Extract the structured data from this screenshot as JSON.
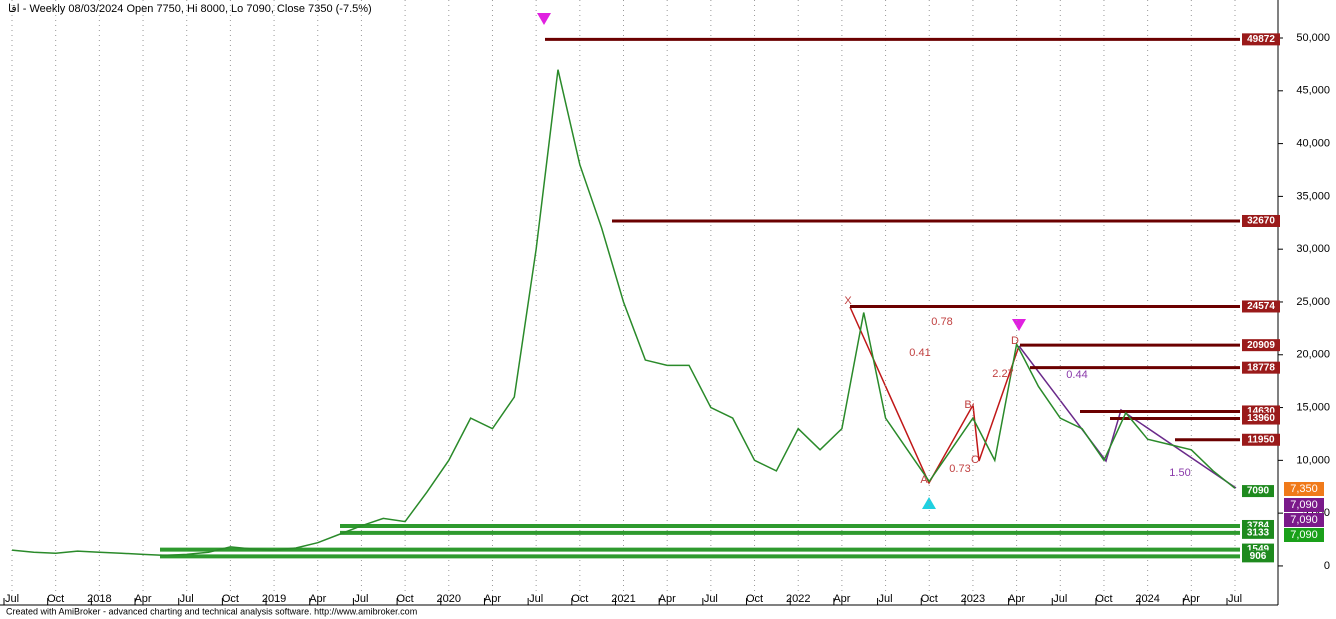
{
  "chart_data": {
    "type": "line",
    "title": "اقا - Weekly 08/03/2024 Open 7750, Hi 8000, Lo 7090, Close 7350 (-7.5%)",
    "footer": "Created with AmiBroker - advanced charting and technical analysis software. http://www.amibroker.com",
    "categories": [
      "Jul",
      null,
      "Oct",
      null,
      "2018",
      null,
      "Apr",
      null,
      "Jul",
      null,
      "Oct",
      null,
      "2019",
      null,
      "Apr",
      null,
      "Jul",
      null,
      "Oct",
      null,
      "2020",
      null,
      "Apr",
      null,
      "Jul",
      null,
      "Oct",
      null,
      "2021",
      null,
      "Apr",
      null,
      "Jul",
      null,
      "Oct",
      null,
      "2022",
      null,
      "Apr",
      null,
      "Jul",
      null,
      "Oct",
      null,
      "2023",
      null,
      "Apr",
      null,
      "Jul",
      null,
      "Oct",
      null,
      "2024",
      null,
      "Apr",
      null,
      "Jul"
    ],
    "series": [
      {
        "name": "Close",
        "color": "#2a8a2a",
        "values": [
          1500,
          1300,
          1200,
          1400,
          1300,
          1200,
          1100,
          1000,
          1100,
          1300,
          1800,
          1600,
          1500,
          1700,
          2200,
          3000,
          3800,
          4500,
          4200,
          7000,
          10000,
          14000,
          13000,
          16000,
          30000,
          47000,
          38000,
          32000,
          25000,
          19500,
          19000,
          19000,
          15000,
          14000,
          10000,
          9000,
          13000,
          11000,
          13000,
          24000,
          14000,
          11000,
          8000,
          11000,
          14000,
          10000,
          21000,
          17000,
          14000,
          13000,
          10000,
          14500,
          12000,
          11500,
          11000,
          9000,
          7350
        ]
      }
    ],
    "ylim": [
      -3700,
      53600
    ],
    "yticks": [
      0,
      {
        "value": 5000,
        "label": "5,000"
      },
      {
        "value": 10000,
        "label": "10,000"
      },
      {
        "value": 15000,
        "label": "15,000"
      },
      {
        "value": 20000,
        "label": "20,000"
      },
      {
        "value": 25000,
        "label": "25,000"
      },
      {
        "value": 30000,
        "label": "30,000"
      },
      {
        "value": 35000,
        "label": "35,000"
      },
      {
        "value": 40000,
        "label": "40,000"
      },
      {
        "value": 45000,
        "label": "45,000"
      },
      {
        "value": 50000,
        "label": "50,000"
      }
    ],
    "grid": true,
    "resistance": {
      "color": "#6b0000",
      "values": [
        49872,
        32670,
        24574,
        20909,
        18778,
        14630,
        13960,
        11950
      ]
    },
    "support": {
      "color": "#2e9a2e",
      "values": [
        7090,
        3784,
        3133,
        1549,
        906
      ]
    },
    "price_tags": {
      "values": [
        7350,
        7090,
        7090,
        7090
      ],
      "value_labels": [
        "7,350",
        "7,090",
        "7,090",
        "7,090"
      ],
      "colors": [
        "#f07a1a",
        "#7a1a8a",
        "#7a1a8a",
        "#1aa01a"
      ]
    },
    "pattern_labels": [
      "X",
      "A",
      "B",
      "C",
      "D",
      "0.78",
      "0.41",
      "2.27",
      "0.73",
      "0.44",
      "1.50"
    ]
  }
}
